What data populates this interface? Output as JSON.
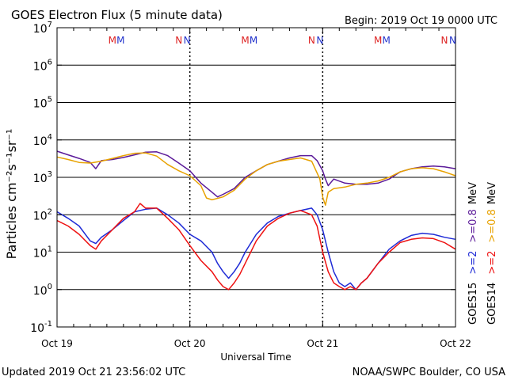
{
  "header": {
    "title": "GOES Electron Flux (5 minute data)",
    "begin": "Begin: 2019 Oct 19 0000 UTC"
  },
  "footer": {
    "updated": "Updated 2019 Oct 21 23:56:02 UTC",
    "credit": "NOAA/SWPC Boulder, CO USA"
  },
  "colors": {
    "goes15_2mev": "#1f2bd6",
    "goes15_08mev": "#5b1a99",
    "goes14_2mev": "#ee1111",
    "goes14_08mev": "#e8a200",
    "marker_blue": "#2233cc",
    "marker_red": "#dd2222"
  },
  "chart_data": {
    "type": "line",
    "title": "GOES Electron Flux (5 minute data)",
    "xlabel": "Universal Time",
    "ylabel": "Particles cm⁻²s⁻¹sr⁻¹",
    "y_scale": "log",
    "ylim": [
      0.1,
      10000000
    ],
    "y_ticks": [
      {
        "value": 0.1,
        "base": "10",
        "exp": "-1"
      },
      {
        "value": 1,
        "base": "10",
        "exp": "0"
      },
      {
        "value": 10,
        "base": "10",
        "exp": "1"
      },
      {
        "value": 100,
        "base": "10",
        "exp": "2"
      },
      {
        "value": 1000,
        "base": "10",
        "exp": "3"
      },
      {
        "value": 10000,
        "base": "10",
        "exp": "4"
      },
      {
        "value": 100000,
        "base": "10",
        "exp": "5"
      },
      {
        "value": 1000000,
        "base": "10",
        "exp": "6"
      },
      {
        "value": 10000000,
        "base": "10",
        "exp": "7"
      }
    ],
    "x_unit": "hours since 2019-10-19 00:00 UTC",
    "xlim": [
      0,
      72
    ],
    "x_ticks": [
      {
        "value": 0,
        "label": "Oct 19"
      },
      {
        "value": 24,
        "label": "Oct 20"
      },
      {
        "value": 48,
        "label": "Oct 21"
      },
      {
        "value": 72,
        "label": "Oct 22"
      }
    ],
    "grid": "horizontal at each decade",
    "threshold": {
      "value": 1000,
      "style": "dashed"
    },
    "midnight_separators": [
      24,
      48
    ],
    "markers": [
      {
        "x": 10.0,
        "text": "M",
        "color": "#dd2222"
      },
      {
        "x": 11.5,
        "text": "M",
        "color": "#2233cc"
      },
      {
        "x": 22.0,
        "text": "N",
        "color": "#dd2222"
      },
      {
        "x": 23.5,
        "text": "N",
        "color": "#2233cc"
      },
      {
        "x": 34.0,
        "text": "M",
        "color": "#dd2222"
      },
      {
        "x": 35.5,
        "text": "M",
        "color": "#2233cc"
      },
      {
        "x": 46.0,
        "text": "N",
        "color": "#dd2222"
      },
      {
        "x": 47.5,
        "text": "N",
        "color": "#2233cc"
      },
      {
        "x": 58.0,
        "text": "M",
        "color": "#dd2222"
      },
      {
        "x": 59.5,
        "text": "M",
        "color": "#2233cc"
      },
      {
        "x": 70.0,
        "text": "N",
        "color": "#dd2222"
      },
      {
        "x": 71.5,
        "text": "N",
        "color": "#2233cc"
      }
    ],
    "legend": [
      {
        "sat": "GOES15",
        "entries": [
          {
            "label": ">=2",
            "color": "#1f2bd6"
          },
          {
            "label": ">=0.8",
            "color": "#5b1a99"
          }
        ]
      },
      {
        "sat": "GOES14",
        "entries": [
          {
            "label": ">=2",
            "color": "#ee1111"
          },
          {
            "label": ">=0.8",
            "color": "#e8a200"
          }
        ]
      }
    ],
    "legend_unit": "MeV",
    "legend_placement": "right, vertical",
    "series": [
      {
        "name": "GOES15 >=0.8 MeV",
        "color": "#5b1a99",
        "points": [
          [
            0,
            5000
          ],
          [
            2,
            4000
          ],
          [
            4,
            3200
          ],
          [
            6,
            2500
          ],
          [
            7,
            1700
          ],
          [
            8,
            2800
          ],
          [
            10,
            3000
          ],
          [
            12,
            3400
          ],
          [
            14,
            4000
          ],
          [
            16,
            4700
          ],
          [
            18,
            4800
          ],
          [
            20,
            3800
          ],
          [
            22,
            2400
          ],
          [
            24,
            1500
          ],
          [
            26,
            700
          ],
          [
            28,
            400
          ],
          [
            29,
            300
          ],
          [
            30,
            350
          ],
          [
            32,
            500
          ],
          [
            34,
            1000
          ],
          [
            36,
            1500
          ],
          [
            38,
            2200
          ],
          [
            40,
            2700
          ],
          [
            42,
            3300
          ],
          [
            44,
            3800
          ],
          [
            46,
            3800
          ],
          [
            47,
            2800
          ],
          [
            48,
            1500
          ],
          [
            48.5,
            900
          ],
          [
            49,
            600
          ],
          [
            50,
            900
          ],
          [
            52,
            700
          ],
          [
            54,
            650
          ],
          [
            56,
            650
          ],
          [
            58,
            700
          ],
          [
            60,
            900
          ],
          [
            62,
            1400
          ],
          [
            64,
            1700
          ],
          [
            66,
            1900
          ],
          [
            68,
            2000
          ],
          [
            70,
            1900
          ],
          [
            72,
            1700
          ]
        ]
      },
      {
        "name": "GOES14 >=0.8 MeV",
        "color": "#e8a200",
        "points": [
          [
            0,
            3500
          ],
          [
            2,
            3000
          ],
          [
            4,
            2500
          ],
          [
            6,
            2400
          ],
          [
            8,
            2700
          ],
          [
            10,
            3200
          ],
          [
            12,
            3800
          ],
          [
            14,
            4400
          ],
          [
            16,
            4500
          ],
          [
            18,
            3700
          ],
          [
            20,
            2200
          ],
          [
            22,
            1500
          ],
          [
            24,
            1100
          ],
          [
            26,
            600
          ],
          [
            27,
            280
          ],
          [
            28,
            250
          ],
          [
            30,
            300
          ],
          [
            32,
            450
          ],
          [
            34,
            900
          ],
          [
            36,
            1500
          ],
          [
            38,
            2200
          ],
          [
            40,
            2700
          ],
          [
            42,
            3000
          ],
          [
            44,
            3300
          ],
          [
            46,
            2700
          ],
          [
            47.5,
            900
          ],
          [
            48,
            300
          ],
          [
            48.5,
            180
          ],
          [
            49,
            400
          ],
          [
            50,
            500
          ],
          [
            52,
            550
          ],
          [
            54,
            650
          ],
          [
            56,
            700
          ],
          [
            58,
            800
          ],
          [
            60,
            1000
          ],
          [
            62,
            1400
          ],
          [
            64,
            1700
          ],
          [
            66,
            1800
          ],
          [
            68,
            1700
          ],
          [
            70,
            1400
          ],
          [
            72,
            1100
          ]
        ]
      },
      {
        "name": "GOES15 >=2 MeV",
        "color": "#1f2bd6",
        "points": [
          [
            0,
            120
          ],
          [
            2,
            80
          ],
          [
            4,
            50
          ],
          [
            6,
            20
          ],
          [
            7,
            17
          ],
          [
            8,
            25
          ],
          [
            10,
            40
          ],
          [
            12,
            70
          ],
          [
            14,
            120
          ],
          [
            16,
            140
          ],
          [
            18,
            150
          ],
          [
            20,
            100
          ],
          [
            22,
            60
          ],
          [
            24,
            30
          ],
          [
            26,
            20
          ],
          [
            28,
            10
          ],
          [
            29,
            5
          ],
          [
            30,
            3
          ],
          [
            31,
            2
          ],
          [
            32,
            3
          ],
          [
            33,
            5
          ],
          [
            34,
            10
          ],
          [
            36,
            30
          ],
          [
            38,
            60
          ],
          [
            40,
            90
          ],
          [
            42,
            110
          ],
          [
            44,
            130
          ],
          [
            46,
            150
          ],
          [
            47,
            100
          ],
          [
            48,
            40
          ],
          [
            49,
            10
          ],
          [
            50,
            3
          ],
          [
            51,
            1.5
          ],
          [
            52,
            1.2
          ],
          [
            53,
            1.5
          ],
          [
            54,
            1.0
          ],
          [
            55,
            1.5
          ],
          [
            56,
            2
          ],
          [
            58,
            5
          ],
          [
            60,
            12
          ],
          [
            62,
            20
          ],
          [
            64,
            28
          ],
          [
            66,
            32
          ],
          [
            68,
            30
          ],
          [
            70,
            25
          ],
          [
            72,
            22
          ]
        ]
      },
      {
        "name": "GOES14 >=2 MeV",
        "color": "#ee1111",
        "points": [
          [
            0,
            70
          ],
          [
            2,
            50
          ],
          [
            4,
            30
          ],
          [
            6,
            15
          ],
          [
            7,
            12
          ],
          [
            8,
            20
          ],
          [
            10,
            40
          ],
          [
            12,
            80
          ],
          [
            14,
            120
          ],
          [
            15,
            200
          ],
          [
            16,
            150
          ],
          [
            18,
            150
          ],
          [
            20,
            80
          ],
          [
            22,
            40
          ],
          [
            24,
            15
          ],
          [
            26,
            6
          ],
          [
            28,
            3
          ],
          [
            29,
            1.8
          ],
          [
            30,
            1.2
          ],
          [
            31,
            1.0
          ],
          [
            32,
            1.5
          ],
          [
            33,
            2.5
          ],
          [
            34,
            5
          ],
          [
            36,
            20
          ],
          [
            38,
            50
          ],
          [
            40,
            80
          ],
          [
            42,
            110
          ],
          [
            44,
            130
          ],
          [
            46,
            100
          ],
          [
            47,
            50
          ],
          [
            48,
            10
          ],
          [
            49,
            3
          ],
          [
            50,
            1.5
          ],
          [
            51,
            1.2
          ],
          [
            52,
            1.0
          ],
          [
            53,
            1.2
          ],
          [
            54,
            1.0
          ],
          [
            55,
            1.5
          ],
          [
            56,
            2
          ],
          [
            58,
            5
          ],
          [
            60,
            10
          ],
          [
            62,
            18
          ],
          [
            64,
            22
          ],
          [
            66,
            24
          ],
          [
            68,
            23
          ],
          [
            70,
            18
          ],
          [
            72,
            12
          ]
        ]
      }
    ]
  }
}
